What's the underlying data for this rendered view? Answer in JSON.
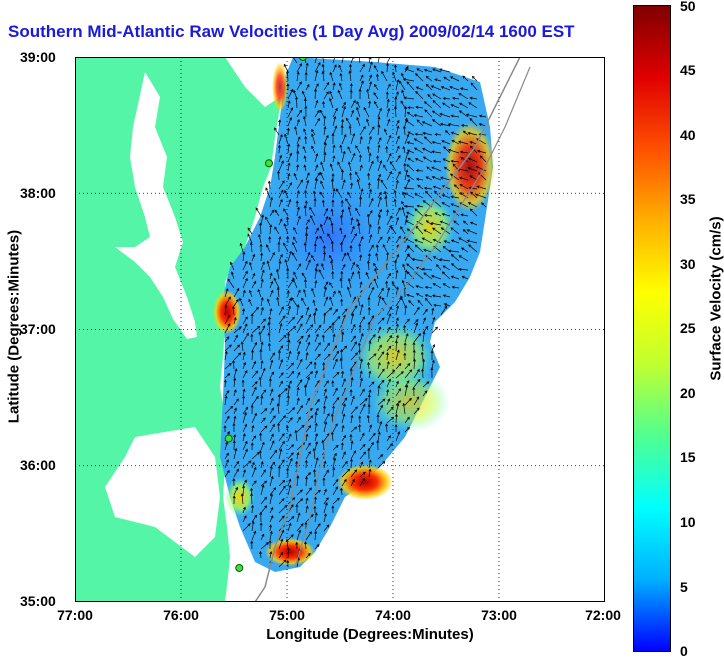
{
  "title": "Southern Mid-Atlantic Raw Velocities (1 Day Avg) 2009/02/14 1600 EST",
  "x_axis": {
    "label": "Longitude (Degrees:Minutes)",
    "ticks": [
      "77:00",
      "76:00",
      "75:00",
      "74:00",
      "73:00",
      "72:00"
    ]
  },
  "y_axis": {
    "label": "Latitude (Degrees:Minutes)",
    "ticks": [
      "39:00",
      "38:00",
      "37:00",
      "36:00",
      "35:00"
    ]
  },
  "map": {
    "extent": {
      "lon": [
        -77,
        -72
      ],
      "lat": [
        35,
        39
      ]
    },
    "land_color": "#55f5a8",
    "water_color": "#ffffff",
    "grid": "dotted",
    "station_markers": [
      {
        "lon": -74.85,
        "lat": 39.0
      },
      {
        "lon": -75.17,
        "lat": 38.22
      },
      {
        "lon": -75.55,
        "lat": 36.2
      },
      {
        "lon": -75.45,
        "lat": 35.25
      }
    ]
  },
  "colorbar": {
    "label": "Surface Velocity (cm/s)",
    "range": [
      0,
      50
    ],
    "ticks": [
      "50",
      "45",
      "40",
      "35",
      "30",
      "25",
      "20",
      "15",
      "10",
      "5",
      "0"
    ],
    "colormap": [
      "#0000ff",
      "#00b0ff",
      "#00ffff",
      "#50ff90",
      "#c0ff30",
      "#ffff00",
      "#ffb000",
      "#ff5000",
      "#e00000",
      "#800000"
    ]
  }
}
